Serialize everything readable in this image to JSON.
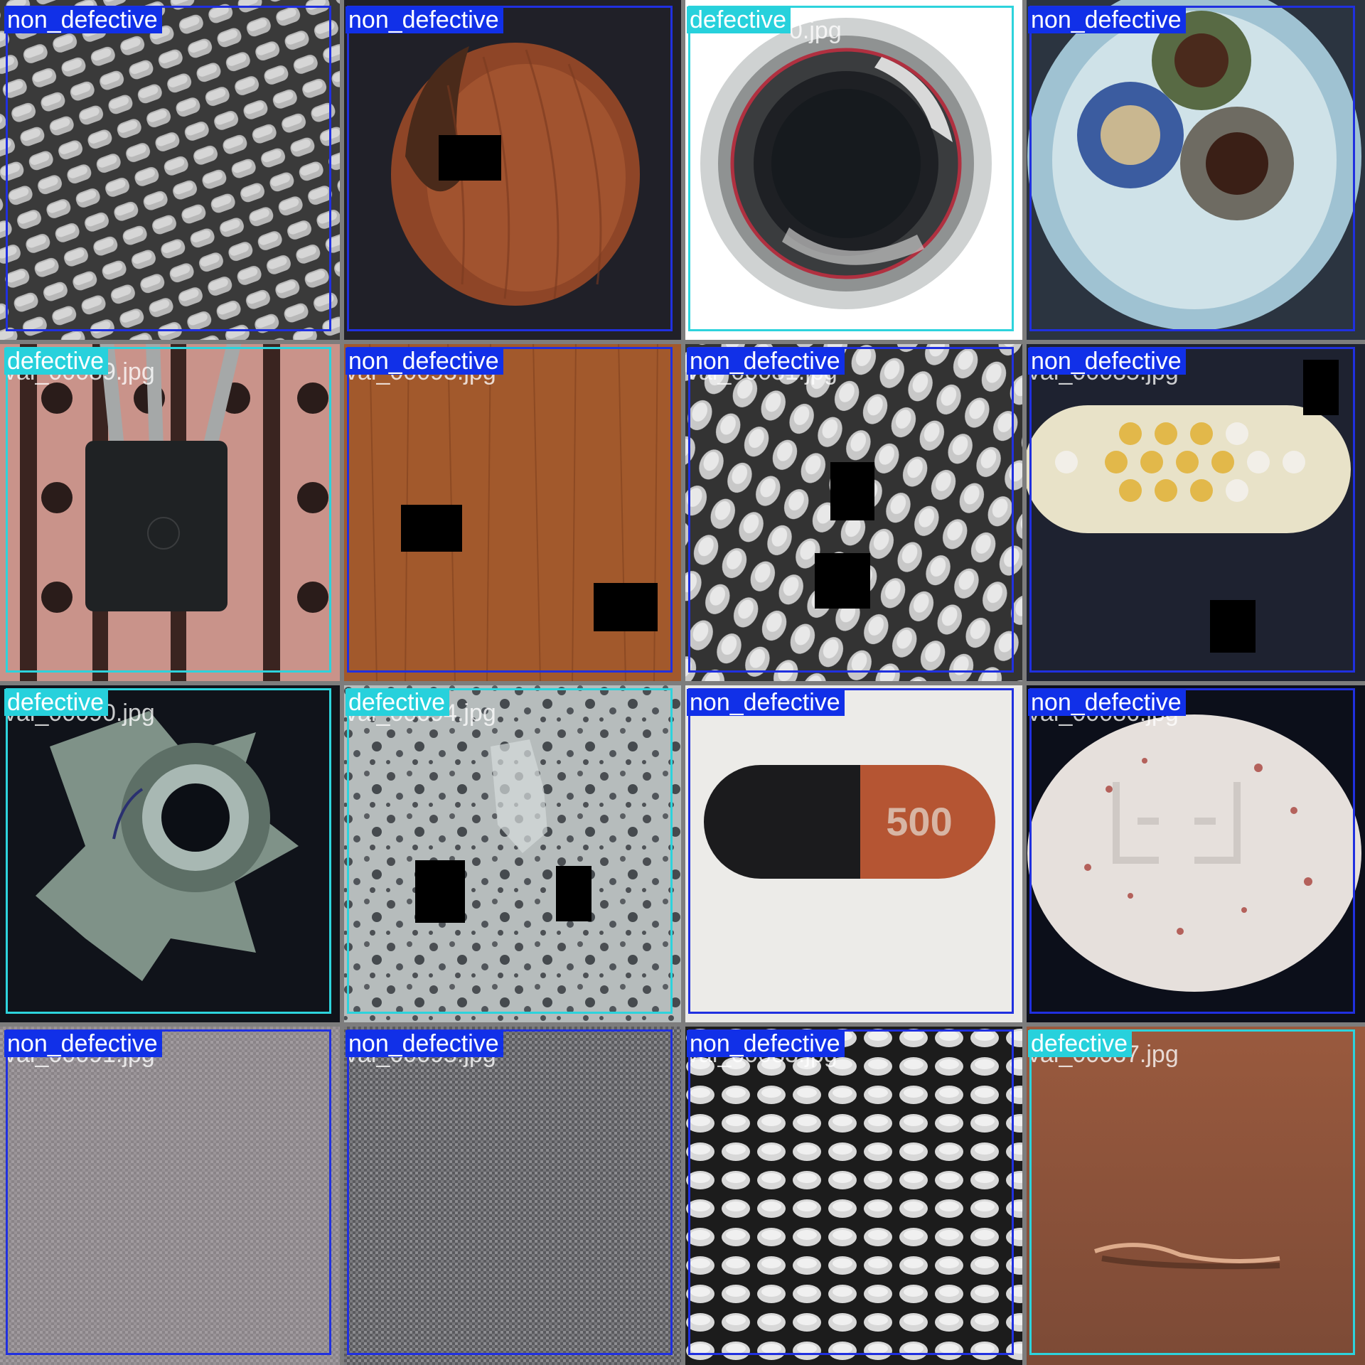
{
  "colors": {
    "non_defective": "#1130e8",
    "defective": "#27d1dc",
    "background": "#7f7f7f"
  },
  "tiles": [
    {
      "label": "non_defective",
      "filename": "",
      "image": "metal-grid-diagonal"
    },
    {
      "label": "non_defective",
      "filename": "",
      "image": "hazelnut"
    },
    {
      "label": "defective",
      "filename": "0.jpg",
      "image": "bottle-top"
    },
    {
      "label": "non_defective",
      "filename": "",
      "image": "cable-cross-section"
    },
    {
      "label": "defective",
      "filename": "val_00089.jpg",
      "image": "transistor"
    },
    {
      "label": "non_defective",
      "filename": "val_00093.jpg",
      "image": "wood"
    },
    {
      "label": "non_defective",
      "filename": "val_00081.jpg",
      "image": "metal-grid"
    },
    {
      "label": "non_defective",
      "filename": "val_00085.jpg",
      "image": "toothbrush"
    },
    {
      "label": "defective",
      "filename": "val_00090.jpg",
      "image": "metal-nut"
    },
    {
      "label": "defective",
      "filename": "val_00094.jpg",
      "image": "tile-speckled"
    },
    {
      "label": "non_defective",
      "filename": "",
      "image": "capsule"
    },
    {
      "label": "non_defective",
      "filename": "val_00086.jpg",
      "image": "pill"
    },
    {
      "label": "non_defective",
      "filename": "val_00091.jpg",
      "image": "carpet"
    },
    {
      "label": "non_defective",
      "filename": "val_00095.jpg",
      "image": "carpet-dark"
    },
    {
      "label": "non_defective",
      "filename": "val_00083.jpg",
      "image": "metal-grid-dark"
    },
    {
      "label": "defective",
      "filename": "val_00087.jpg",
      "image": "leather"
    }
  ],
  "capsule_print": "500"
}
